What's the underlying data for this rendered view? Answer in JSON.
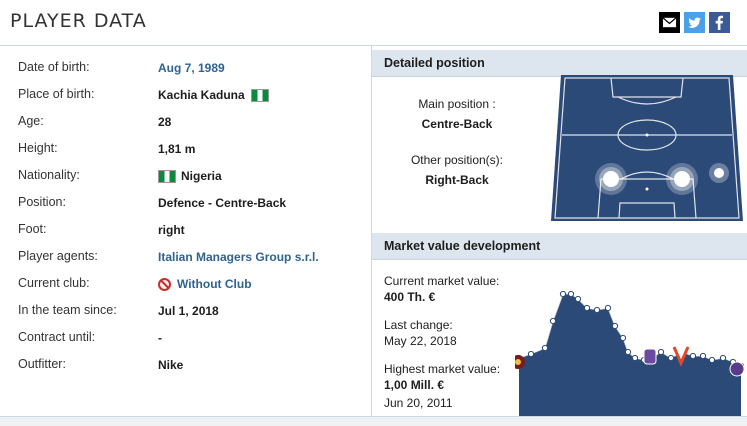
{
  "header": {
    "title": "PLAYER DATA"
  },
  "social": {
    "email_icon": "mail-icon",
    "twitter_icon": "twitter-icon",
    "facebook_icon": "facebook-icon"
  },
  "player": {
    "rows": [
      {
        "label": "Date of birth:",
        "value": "Aug 7, 1989"
      },
      {
        "label": "Place of birth:",
        "value": "Kachia Kaduna"
      },
      {
        "label": "Age:",
        "value": "28"
      },
      {
        "label": "Height:",
        "value": "1,81 m"
      },
      {
        "label": "Nationality:",
        "value": "Nigeria"
      },
      {
        "label": "Position:",
        "value": "Defence - Centre-Back"
      },
      {
        "label": "Foot:",
        "value": "right"
      },
      {
        "label": "Player agents:",
        "value": "Italian Managers Group s.r.l."
      },
      {
        "label": "Current club:",
        "value": "Without Club"
      },
      {
        "label": "In the team since:",
        "value": "Jul 1, 2018"
      },
      {
        "label": "Contract until:",
        "value": "-"
      },
      {
        "label": "Outfitter:",
        "value": "Nike"
      }
    ]
  },
  "position": {
    "title": "Detailed position",
    "main_label": "Main position :",
    "main_value": "Centre-Back",
    "other_label": "Other position(s):",
    "other_value": "Right-Back"
  },
  "market": {
    "title": "Market value development",
    "current_label": "Current market value:",
    "current_value": "400 Th. €",
    "last_change_label": "Last change:",
    "last_change_value": "May 22, 2018",
    "highest_label": "Highest market value:",
    "highest_value": "1,00 Mill. €",
    "highest_date": "Jun 20, 2011"
  },
  "colors": {
    "pitch": "#2c4a77",
    "chart_fill": "#2c4a77",
    "link": "#2e6391",
    "section_header": "#dde6ee"
  }
}
